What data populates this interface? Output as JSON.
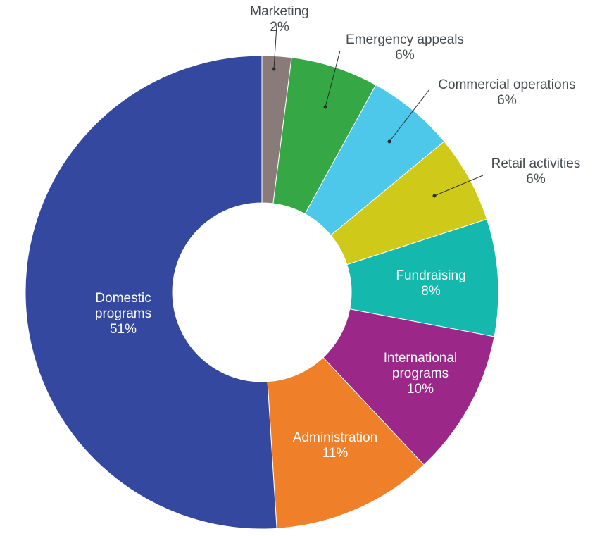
{
  "chart_data": {
    "type": "pie",
    "variant": "donut",
    "title": "",
    "slices": [
      {
        "name": "Marketing",
        "label_lines": [
          "Marketing"
        ],
        "value": 2,
        "label": "2%",
        "color": "#8a7b7b"
      },
      {
        "name": "Emergency appeals",
        "label_lines": [
          "Emergency appeals"
        ],
        "value": 6,
        "label": "6%",
        "color": "#35a845"
      },
      {
        "name": "Commercial operations",
        "label_lines": [
          "Commercial operations"
        ],
        "value": 6,
        "label": "6%",
        "color": "#4dc7ea"
      },
      {
        "name": "Retail activities",
        "label_lines": [
          "Retail activities"
        ],
        "value": 6,
        "label": "6%",
        "color": "#cfc91a"
      },
      {
        "name": "Fundraising",
        "label_lines": [
          "Fundraising"
        ],
        "value": 8,
        "label": "8%",
        "color": "#14b8ad"
      },
      {
        "name": "International programs",
        "label_lines": [
          "International",
          "programs"
        ],
        "value": 10,
        "label": "10%",
        "color": "#9b2788"
      },
      {
        "name": "Administration",
        "label_lines": [
          "Administration"
        ],
        "value": 11,
        "label": "11%",
        "color": "#f07f2a"
      },
      {
        "name": "Domestic programs",
        "label_lines": [
          "Domestic",
          "programs"
        ],
        "value": 51,
        "label": "51%",
        "color": "#33489e"
      }
    ]
  }
}
